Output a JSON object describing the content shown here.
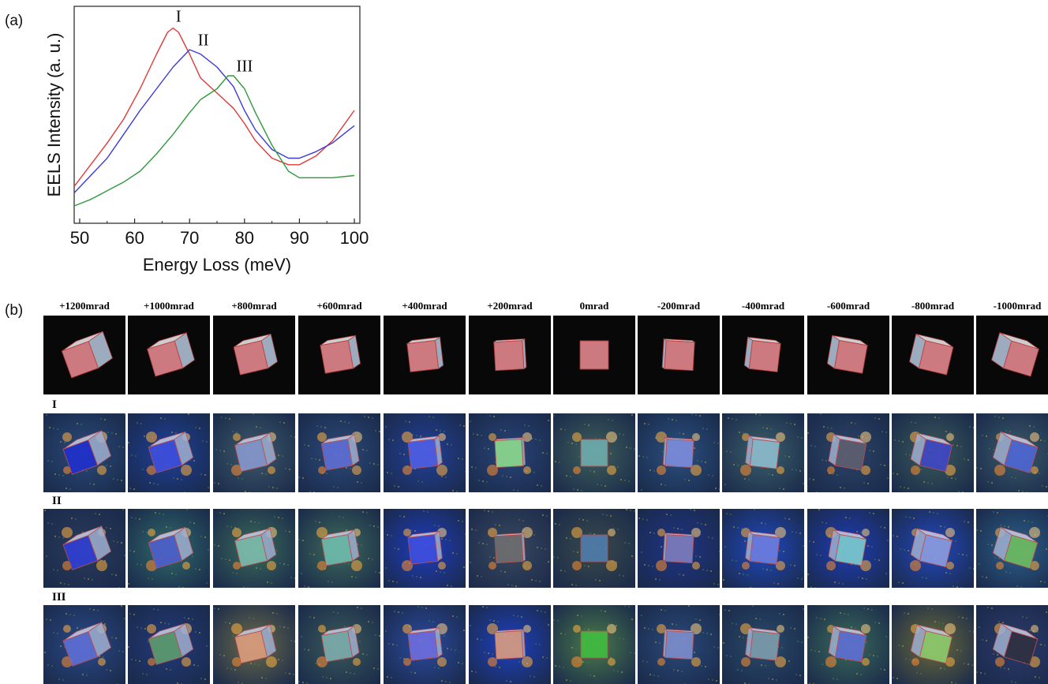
{
  "panel_a_label": "(a)",
  "panel_b_label": "(b)",
  "chart_data": {
    "type": "line",
    "title": "",
    "xlabel": "Energy Loss (meV)",
    "ylabel": "EELS Intensity (a. u.)",
    "xlim": [
      49,
      101
    ],
    "ylim": [
      0,
      1
    ],
    "x_ticks": [
      "50",
      "60",
      "70",
      "80",
      "90",
      "100"
    ],
    "grid": false,
    "legend": "none",
    "series": [
      {
        "name": "I",
        "color": "#e03a3a",
        "x": [
          49,
          52,
          55,
          58,
          61,
          64,
          66,
          67,
          68,
          70,
          72,
          75,
          78,
          80,
          82,
          85,
          88,
          90,
          93,
          96,
          98,
          100
        ],
        "y": [
          0.17,
          0.27,
          0.37,
          0.48,
          0.62,
          0.78,
          0.88,
          0.9,
          0.88,
          0.78,
          0.67,
          0.6,
          0.53,
          0.46,
          0.38,
          0.3,
          0.27,
          0.27,
          0.31,
          0.38,
          0.45,
          0.52
        ]
      },
      {
        "name": "II",
        "color": "#3b3bd6",
        "x": [
          49,
          52,
          55,
          58,
          61,
          64,
          67,
          70,
          72,
          75,
          78,
          80,
          82,
          85,
          88,
          90,
          93,
          96,
          98,
          100
        ],
        "y": [
          0.14,
          0.22,
          0.3,
          0.41,
          0.52,
          0.62,
          0.72,
          0.8,
          0.78,
          0.72,
          0.63,
          0.52,
          0.43,
          0.34,
          0.3,
          0.3,
          0.33,
          0.37,
          0.41,
          0.45
        ]
      },
      {
        "name": "III",
        "color": "#2f9a3c",
        "x": [
          49,
          52,
          55,
          58,
          61,
          64,
          67,
          70,
          72,
          75,
          77,
          78,
          80,
          82,
          85,
          88,
          90,
          93,
          96,
          100
        ],
        "y": [
          0.08,
          0.11,
          0.15,
          0.19,
          0.24,
          0.32,
          0.41,
          0.51,
          0.57,
          0.62,
          0.68,
          0.68,
          0.62,
          0.51,
          0.36,
          0.24,
          0.21,
          0.21,
          0.21,
          0.22
        ]
      }
    ],
    "annotations": [
      {
        "text": "I",
        "x": 67.5,
        "y": 0.93
      },
      {
        "text": "II",
        "x": 71.5,
        "y": 0.82
      },
      {
        "text": "III",
        "x": 78.5,
        "y": 0.7
      }
    ]
  },
  "grid_b": {
    "columns": [
      "+1200mrad",
      "+1000mrad",
      "+800mrad",
      "+600mrad",
      "+400mrad",
      "+200mrad",
      "0mrad",
      "-200mrad",
      "-400mrad",
      "-600mrad",
      "-800mrad",
      "-1000mrad"
    ],
    "rows": [
      {
        "label": "",
        "kind": "geometry"
      },
      {
        "label": "I",
        "kind": "map"
      },
      {
        "label": "II",
        "kind": "map"
      },
      {
        "label": "III",
        "kind": "map"
      }
    ]
  }
}
